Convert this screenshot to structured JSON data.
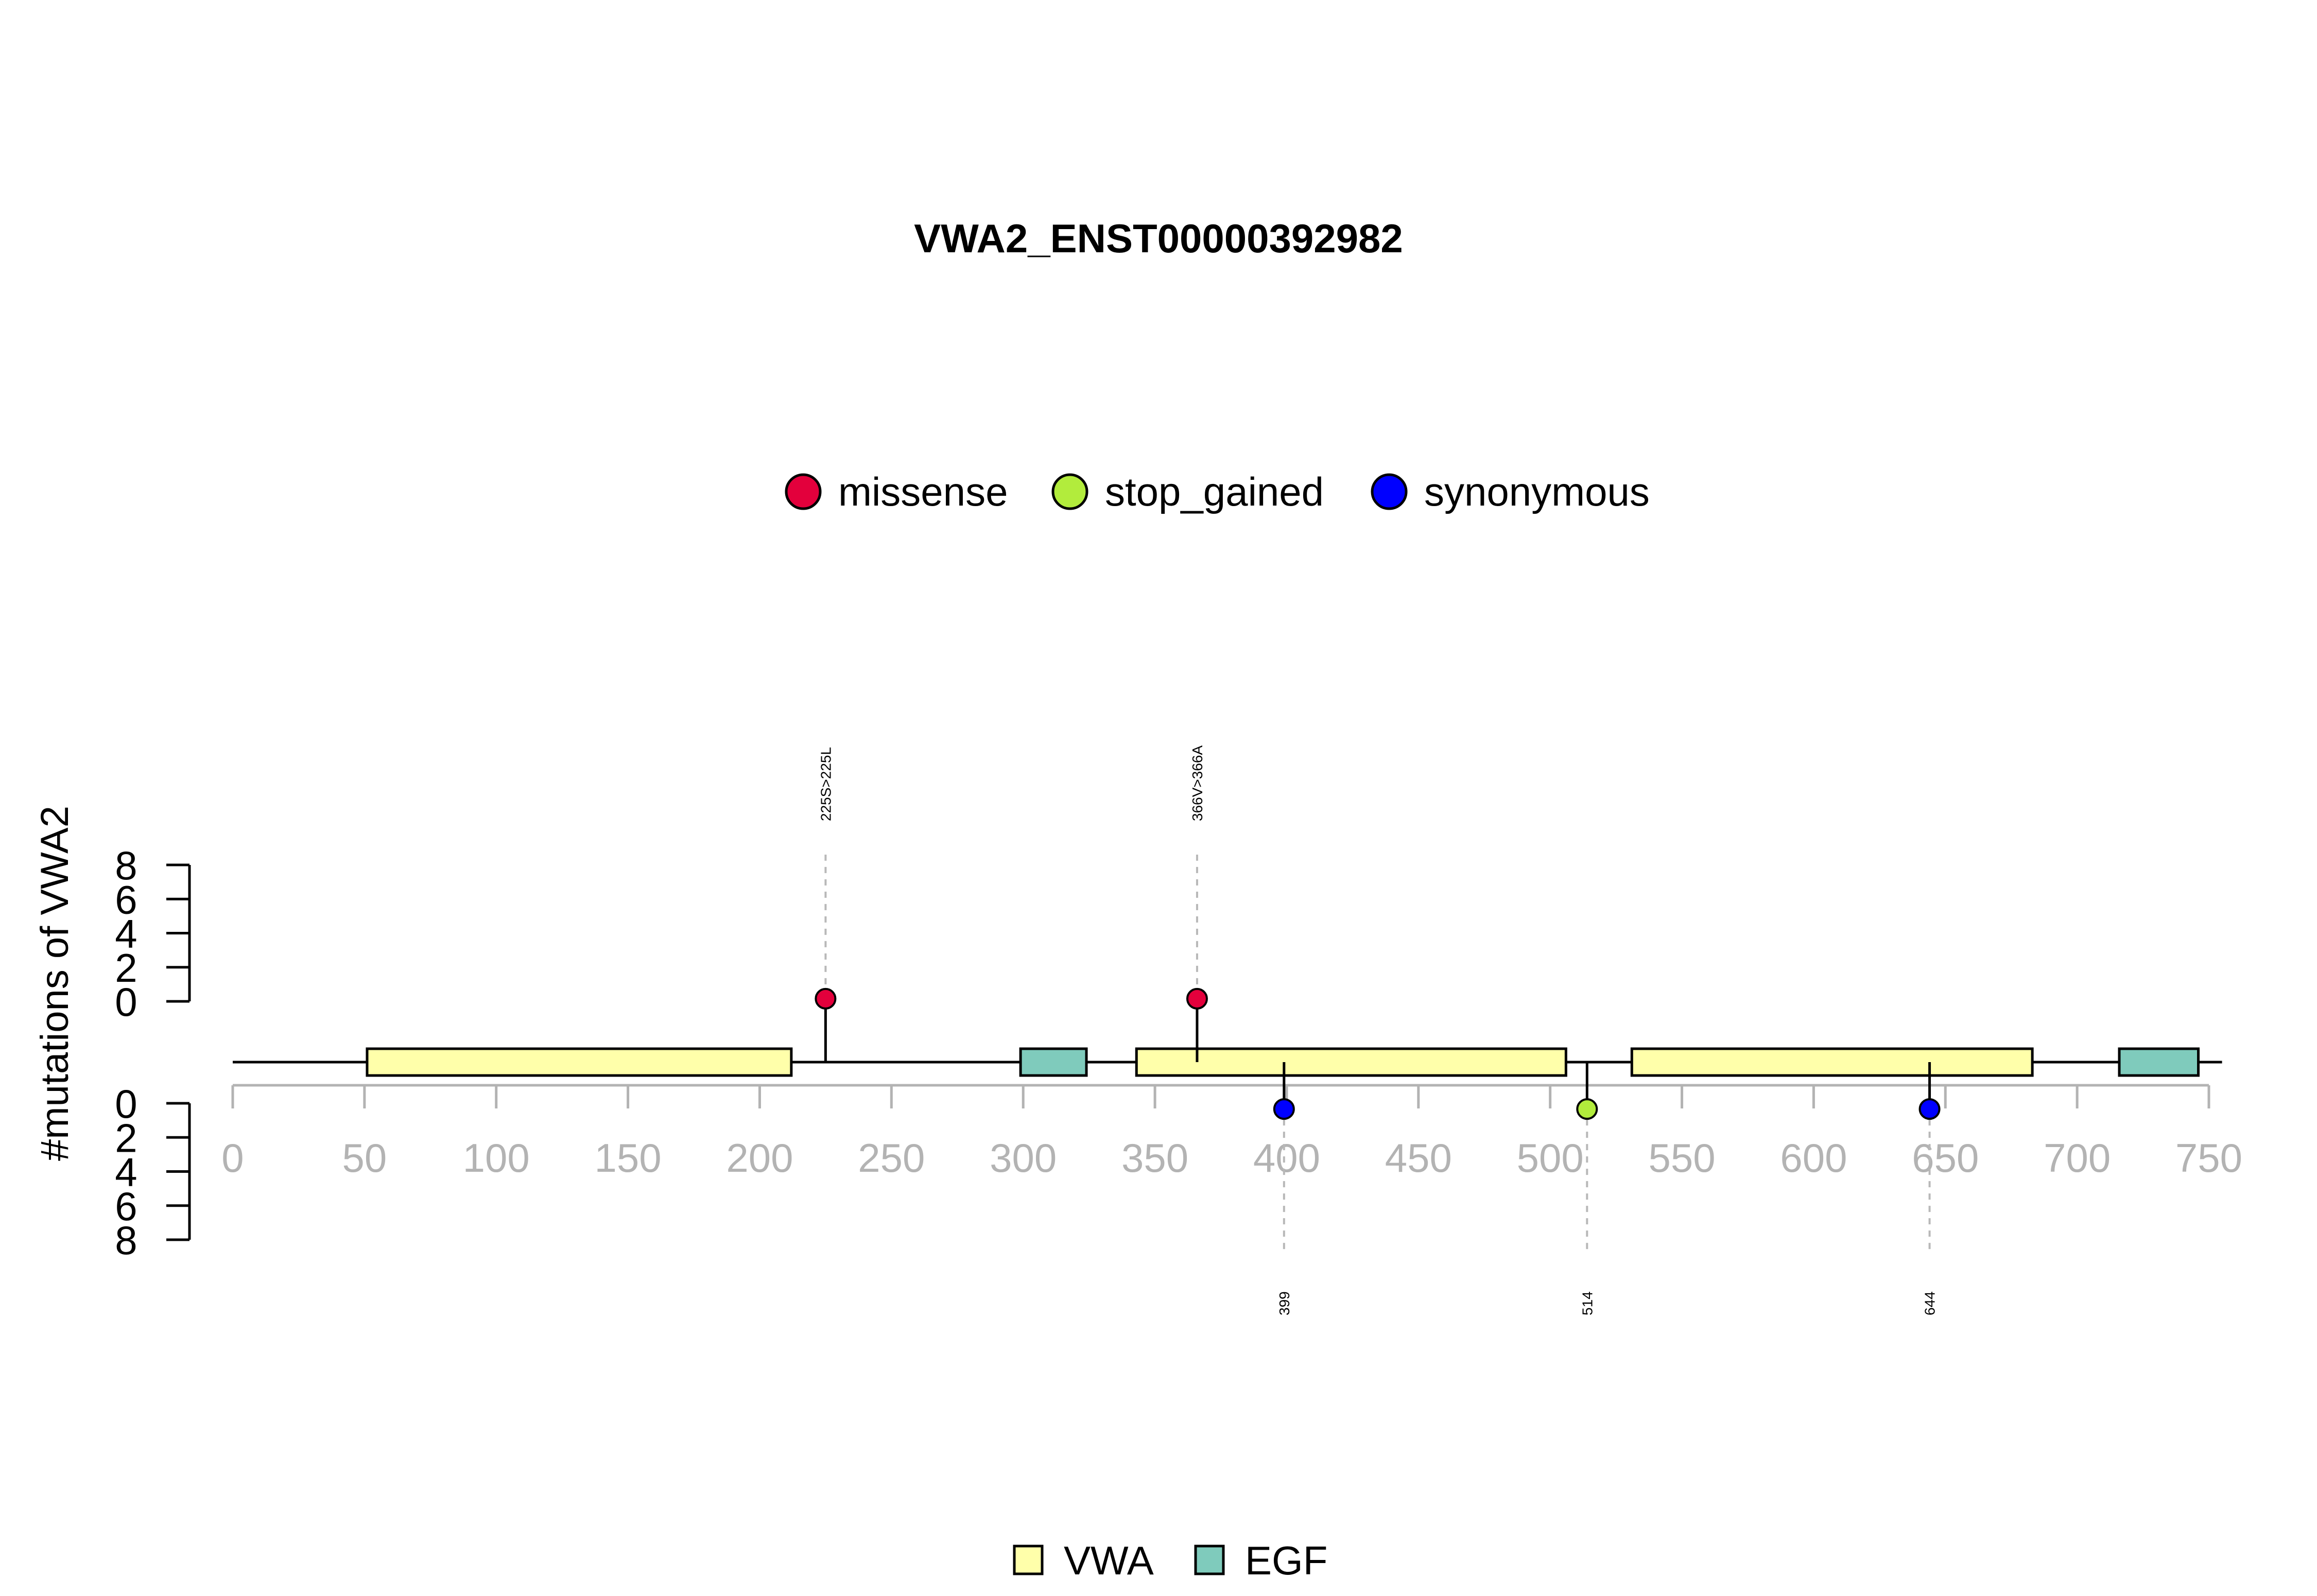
{
  "chart_data": {
    "type": "lollipop",
    "title": "VWA2_ENST00000392982",
    "ylabel": "#mutations of VWA2",
    "xlim": [
      0,
      750
    ],
    "x_ticks": [
      0,
      50,
      100,
      150,
      200,
      250,
      300,
      350,
      400,
      450,
      500,
      550,
      600,
      650,
      700,
      750
    ],
    "y_ticks_top": [
      0,
      2,
      4,
      6,
      8
    ],
    "y_ticks_bottom": [
      0,
      2,
      4,
      6,
      8
    ],
    "protein_length": 755,
    "mutation_legend": [
      {
        "name": "missense",
        "color": "#E3003C"
      },
      {
        "name": "stop_gained",
        "color": "#B2EC3C"
      },
      {
        "name": "synonymous",
        "color": "#0000FF"
      }
    ],
    "domain_legend": [
      {
        "name": "VWA",
        "color": "#FFFFAA"
      },
      {
        "name": "EGF",
        "color": "#7FCBBC"
      }
    ],
    "domains": [
      {
        "name": "VWA",
        "start": 51,
        "end": 212
      },
      {
        "name": "EGF",
        "start": 299,
        "end": 324
      },
      {
        "name": "VWA",
        "start": 343,
        "end": 506
      },
      {
        "name": "VWA",
        "start": 531,
        "end": 683
      },
      {
        "name": "EGF",
        "start": 716,
        "end": 746
      }
    ],
    "mutations": [
      {
        "position": 225,
        "count": 1,
        "type": "missense",
        "side": "top",
        "label": "225S>225L"
      },
      {
        "position": 366,
        "count": 1,
        "type": "missense",
        "side": "top",
        "label": "366V>366A"
      },
      {
        "position": 399,
        "count": 1,
        "type": "synonymous",
        "side": "bottom",
        "label": "399"
      },
      {
        "position": 514,
        "count": 1,
        "type": "stop_gained",
        "side": "bottom",
        "label": "514"
      },
      {
        "position": 644,
        "count": 1,
        "type": "synonymous",
        "side": "bottom",
        "label": "644"
      }
    ]
  }
}
